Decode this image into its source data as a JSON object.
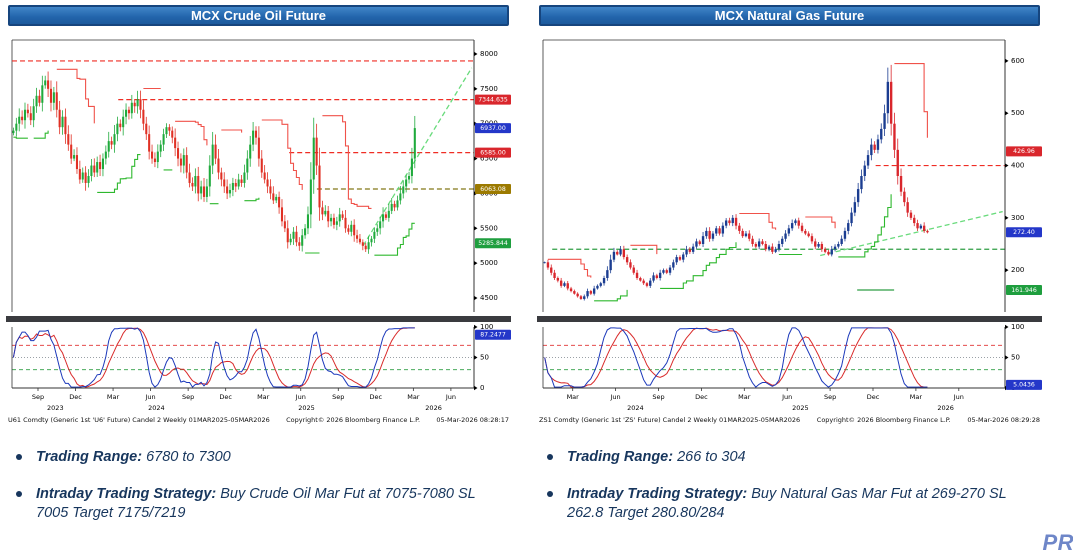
{
  "watermark": "PR",
  "charts": [
    {
      "title": "MCX Crude Oil Future",
      "footer": {
        "ticker": "U61 Comdty (Generic 1st 'U6' Future) Candel 2 Weekly 01MAR2025-05MAR2026",
        "copyright": "Copyright© 2026 Bloomberg Finance L.P.",
        "datetime": "05-Mar-2026 08:28:17"
      },
      "bullets": [
        {
          "label": "Trading Range:",
          "text": "6780 to 7300"
        },
        {
          "label": "Intraday Trading Strategy:",
          "text": "Buy Crude Oil Mar Fut at 7075-7080 SL 7005 Target 7175/7219"
        }
      ]
    },
    {
      "title": "MCX Natural Gas Future",
      "footer": {
        "ticker": "ZS1 Comdty (Generic 1st 'ZS' Future) Candel 2 Weekly 01MAR2025-05MAR2026",
        "copyright": "Copyright© 2026 Bloomberg Finance L.P.",
        "datetime": "05-Mar-2026 08:29:28"
      },
      "bullets": [
        {
          "label": "Trading Range:",
          "text": "266 to 304"
        },
        {
          "label": "Intraday Trading Strategy:",
          "text": "Buy Natural Gas Mar Fut at 269-270 SL 262.8 Target 280.80/284"
        }
      ]
    }
  ],
  "chart_data": [
    {
      "type": "candlestick",
      "title": "MCX Crude Oil Future",
      "period": "Weekly",
      "y_axis": {
        "min": 4300,
        "max": 8200,
        "ticks": [
          4500,
          5000,
          5500,
          6000,
          6500,
          7000,
          7500,
          8000
        ]
      },
      "axis_weeks": 160,
      "closes": [
        6900,
        7000,
        7100,
        7050,
        7200,
        7150,
        7050,
        7250,
        7400,
        7300,
        7550,
        7620,
        7500,
        7300,
        7450,
        7200,
        6950,
        7100,
        6850,
        6700,
        6500,
        6550,
        6350,
        6200,
        6300,
        6150,
        6250,
        6400,
        6300,
        6450,
        6350,
        6500,
        6600,
        6750,
        6700,
        6850,
        7000,
        6950,
        7100,
        7200,
        7150,
        7300,
        7250,
        7350,
        7200,
        7000,
        6850,
        6600,
        6500,
        6450,
        6600,
        6700,
        6850,
        6950,
        6900,
        6800,
        6650,
        6500,
        6400,
        6550,
        6300,
        6150,
        6100,
        6250,
        6000,
        6100,
        5950,
        6100,
        6400,
        6700,
        6500,
        6300,
        6200,
        6100,
        6000,
        6050,
        6150,
        6100,
        6200,
        6150,
        6300,
        6500,
        6700,
        6900,
        6800,
        6500,
        6300,
        6200,
        6100,
        6000,
        5900,
        5950,
        5800,
        5600,
        5500,
        5300,
        5350,
        5450,
        5300,
        5250,
        5400,
        5500,
        5700,
        6200,
        6800,
        6400,
        5800,
        5700,
        5750,
        5600,
        5650,
        5550,
        5600,
        5700,
        5650,
        5500,
        5450,
        5550,
        5400,
        5350,
        5300,
        5250,
        5200,
        5300,
        5350,
        5450,
        5500,
        5600,
        5700,
        5650,
        5750,
        5850,
        5800,
        5900,
        6000,
        6100,
        6200,
        6250,
        6500,
        6937
      ],
      "candle_colors": {
        "up": "#1faa3c",
        "down": "#e03024"
      },
      "step_colors": {
        "up": "#2eb82e",
        "down": "#f0524a"
      },
      "x_ticks": [
        {
          "label": "Sep",
          "week": 9
        },
        {
          "label": "Dec",
          "week": 22
        },
        {
          "label": "Mar",
          "week": 35
        },
        {
          "label": "Jun",
          "week": 48
        },
        {
          "label": "Sep",
          "week": 61
        },
        {
          "label": "Dec",
          "week": 74
        },
        {
          "label": "Mar",
          "week": 87
        },
        {
          "label": "Jun",
          "week": 100
        },
        {
          "label": "Sep",
          "week": 113
        },
        {
          "label": "Dec",
          "week": 126
        },
        {
          "label": "Mar",
          "week": 139
        },
        {
          "label": "Jun",
          "week": 152
        }
      ],
      "year_ticks": [
        {
          "label": "2023",
          "week": 15
        },
        {
          "label": "2024",
          "week": 50
        },
        {
          "label": "2025",
          "week": 102
        },
        {
          "label": "2026",
          "week": 146
        }
      ],
      "levels": [
        {
          "value": 7900,
          "color": "#ef2d24",
          "from": 0.0,
          "to": 1.0
        },
        {
          "value": 7344.635,
          "color": "#ef2d24",
          "from": 0.23,
          "to": 1.0
        },
        {
          "value": 6585,
          "color": "#ef2d24",
          "from": 0.6,
          "to": 1.0
        },
        {
          "value": 6063.08,
          "color": "#827717",
          "from": 0.66,
          "to": 1.0
        }
      ],
      "trend_line": {
        "from_frac": 0.76,
        "from_value": 5250,
        "to_frac": 0.995,
        "to_value": 7800,
        "color": "#69db7c"
      },
      "price_badges": [
        {
          "label": "7344.635",
          "value": 7344.635,
          "color": "#d9262c"
        },
        {
          "label": "6937.00",
          "value": 6937,
          "color": "#2437c9"
        },
        {
          "label": "6585.00",
          "value": 6585,
          "color": "#d9262c"
        },
        {
          "label": "6063.08",
          "value": 6063.08,
          "color": "#9c7a00"
        },
        {
          "label": "5285.844",
          "value": 5285.844,
          "color": "#1e9e3e"
        }
      ],
      "oscillator": {
        "badge": {
          "label": "87.2477",
          "value": 87.2477,
          "color": "#2437c9"
        },
        "ticks": [
          100,
          50,
          0
        ],
        "levels": [
          {
            "value": 70,
            "color": "#e03131"
          },
          {
            "value": 50,
            "color": "#9aa0a6",
            "style": "dot"
          },
          {
            "value": 30,
            "color": "#2f9e44"
          }
        ],
        "line_colors": {
          "fast": "#1c39bb",
          "slow": "#d92b2b"
        }
      }
    },
    {
      "type": "candlestick",
      "title": "MCX Natural Gas Future",
      "period": "Weekly",
      "y_axis": {
        "min": 120,
        "max": 640,
        "ticks": [
          200,
          300,
          400,
          500,
          600
        ]
      },
      "axis_weeks": 140,
      "closes": [
        215,
        205,
        195,
        185,
        180,
        170,
        175,
        165,
        160,
        155,
        150,
        145,
        150,
        160,
        155,
        165,
        170,
        175,
        185,
        200,
        220,
        235,
        230,
        240,
        225,
        215,
        205,
        195,
        185,
        180,
        175,
        170,
        180,
        190,
        185,
        195,
        200,
        195,
        205,
        215,
        225,
        220,
        230,
        240,
        235,
        245,
        255,
        250,
        265,
        275,
        260,
        270,
        280,
        270,
        285,
        295,
        290,
        300,
        285,
        275,
        265,
        270,
        260,
        250,
        245,
        255,
        250,
        240,
        245,
        235,
        240,
        250,
        260,
        270,
        280,
        290,
        295,
        285,
        275,
        270,
        265,
        255,
        245,
        250,
        240,
        235,
        230,
        240,
        245,
        250,
        260,
        275,
        290,
        310,
        330,
        355,
        380,
        400,
        420,
        440,
        430,
        450,
        470,
        500,
        560,
        480,
        430,
        380,
        350,
        330,
        310,
        300,
        290,
        280,
        285,
        275,
        272.4
      ],
      "candle_colors": {
        "up": "#1b3d91",
        "down": "#d9262c"
      },
      "step_colors": {
        "up": "#2eb82e",
        "down": "#f0524a"
      },
      "x_ticks": [
        {
          "label": "Mar",
          "week": 9
        },
        {
          "label": "Jun",
          "week": 22
        },
        {
          "label": "Sep",
          "week": 35
        },
        {
          "label": "Dec",
          "week": 48
        },
        {
          "label": "Mar",
          "week": 61
        },
        {
          "label": "Jun",
          "week": 74
        },
        {
          "label": "Sep",
          "week": 87
        },
        {
          "label": "Dec",
          "week": 100
        },
        {
          "label": "Mar",
          "week": 113
        },
        {
          "label": "Jun",
          "week": 126
        }
      ],
      "year_ticks": [
        {
          "label": "2024",
          "week": 28
        },
        {
          "label": "2025",
          "week": 78
        },
        {
          "label": "2026",
          "week": 122
        }
      ],
      "levels": [
        {
          "value": 400,
          "color": "#ef2d24",
          "from": 0.72,
          "to": 1.0
        },
        {
          "value": 240,
          "color": "#2f9e44",
          "from": 0.02,
          "to": 1.0
        },
        {
          "value": 162,
          "color": "#2f9e44",
          "from": 0.68,
          "to": 0.76,
          "style": "solid"
        }
      ],
      "trend_line": {
        "from_frac": 0.6,
        "from_value": 228,
        "to_frac": 0.995,
        "to_value": 312,
        "color": "#69db7c"
      },
      "price_badges": [
        {
          "label": "426.96",
          "value": 426.96,
          "color": "#d9262c"
        },
        {
          "label": "272.40",
          "value": 272.4,
          "color": "#2437c9"
        },
        {
          "label": "161.946",
          "value": 161.946,
          "color": "#1e9e3e"
        }
      ],
      "oscillator": {
        "badge": {
          "label": "5.0436",
          "value": 5.0436,
          "color": "#2437c9"
        },
        "ticks": [
          100,
          50,
          0
        ],
        "levels": [
          {
            "value": 70,
            "color": "#e03131"
          },
          {
            "value": 50,
            "color": "#9aa0a6",
            "style": "dot"
          },
          {
            "value": 30,
            "color": "#2f9e44"
          }
        ],
        "line_colors": {
          "fast": "#1c39bb",
          "slow": "#d92b2b"
        }
      }
    }
  ]
}
